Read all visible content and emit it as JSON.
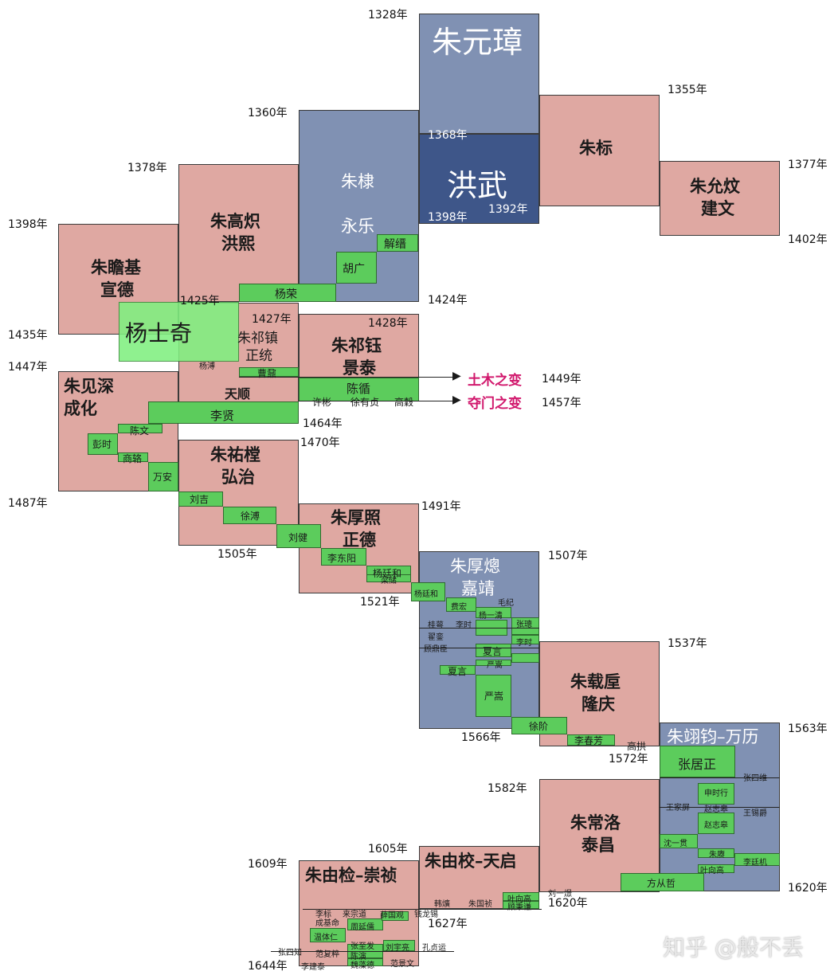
{
  "years": {
    "y1328": "1328年",
    "y1355": "1355年",
    "y1360": "1360年",
    "y1368": "1368年",
    "y1377": "1377年",
    "y1378": "1378年",
    "y1392": "1392年",
    "y1398a": "1398年",
    "y1398b": "1398年",
    "y1402": "1402年",
    "y1424": "1424年",
    "y1425": "1425年",
    "y1427": "1427年",
    "y1428": "1428年",
    "y1435": "1435年",
    "y1447": "1447年",
    "y1449": "1449年",
    "y1457": "1457年",
    "y1464": "1464年",
    "y1470": "1470年",
    "y1487": "1487年",
    "y1491": "1491年",
    "y1505": "1505年",
    "y1507": "1507年",
    "y1521": "1521年",
    "y1537": "1537年",
    "y1563": "1563年",
    "y1566": "1566年",
    "y1572": "1572年",
    "y1582": "1582年",
    "y1605": "1605年",
    "y1609": "1609年",
    "y1620a": "1620年",
    "y1620b": "1620年",
    "y1627": "1627年",
    "y1644": "1644年"
  },
  "emperors": {
    "zhuyuanzhang": "朱元璋",
    "hongwu": "洪武",
    "zhubiao": "朱标",
    "zhuyunwen": "朱允炆",
    "jianwen": "建文",
    "zhudi": "朱棣",
    "yongle": "永乐",
    "zhugaochi": "朱高炽",
    "hongxi": "洪熙",
    "zhuzhanji": "朱瞻基",
    "xuande": "宣德",
    "zhuqizhen": "朱祁镇",
    "zhengtong": "正统",
    "tianshun": "天顺",
    "zhuqiyu": "朱祁钰",
    "jingtai": "景泰",
    "zhujianshen": "朱见深",
    "chenghua": "成化",
    "zhuyoutang": "朱祐樘",
    "hongzhi": "弘治",
    "zhuhouzhao": "朱厚照",
    "zhengde": "正德",
    "zhuhoucong": "朱厚熜",
    "jiajing": "嘉靖",
    "zhuzaihou": "朱载垕",
    "longqing": "隆庆",
    "wanli": "朱翊钧–万历",
    "zhuchangluo": "朱常洛",
    "taichang": "泰昌",
    "tianqi": "朱由校–天启",
    "chongzhen": "朱由检–崇祯"
  },
  "ministers": {
    "xiejin": "解缙",
    "huguang": "胡广",
    "yangrong": "杨荣",
    "yangshiqi": "杨士奇",
    "yangpu": "杨溥",
    "caoji": "曹鼐",
    "chenxun": "陈循",
    "xubin": "许彬",
    "xuyouzhen": "徐有贞",
    "gaogu": "高穀",
    "lixian": "李贤",
    "chenwen": "陈文",
    "pengshi": "彭时",
    "shangluo": "商辂",
    "wanan": "万安",
    "liuji": "刘吉",
    "xupu": "徐溥",
    "liujian": "刘健",
    "lidongyang": "李东阳",
    "yangtinghe": "杨廷和",
    "lianghe": "梁储",
    "yangtinghe2": "杨廷和",
    "feihong": "费宏",
    "maoji": "毛纪",
    "yangyiqing": "杨一清",
    "zhangcong": "张璁",
    "guixiao": "桂萼",
    "lishi": "李时",
    "zhailuan": "翟銮",
    "guding": "顾鼎臣",
    "xiayan": "夏言",
    "xiayan2": "夏言",
    "yansong": "严嵩",
    "yansong2": "严嵩",
    "xujie": "徐阶",
    "lichunfang": "李春芳",
    "gaogong": "高拱",
    "zhangjuzheng": "张居正",
    "zhangsiwei": "张四维",
    "shenshixing": "申时行",
    "wangjiaping": "王家屏",
    "zhaozhigao": "赵志皋",
    "wangxijue": "王锡爵",
    "shenyiguan": "沈一贯",
    "zhugeng": "朱赓",
    "yexianggao": "叶向高",
    "lit Tingji": "李廷机",
    "fangcongzhe": "方从哲",
    "liuyijing": "刘一燝",
    "yexianggao2": "叶向高",
    "gubingqian": "顾秉谦",
    "hanyuan": "韩爌",
    "zhuguozhen": "朱国祯",
    "wentiren": "温体仁",
    "zhouyanru": "周延儒",
    "zhangzhifa": "张至发",
    "xuesk": "薛国观",
    "liuyuliang": "刘宇亮",
    "kongzhenyun": "孔贞运",
    "zhangsizhi": "张四知",
    "fanfuzui": "范复粹",
    "chenyan": "陈演",
    "weizaode": "魏藻德",
    "lijiantai": "李建泰",
    "fanjingwen": "范景文",
    "lizhuo": "李标",
    "laizongdao": "来宗道",
    "chengjiming": "成基命",
    "qianlongxi": "钱龙锡",
    "chenshangyi": "陈演"
  },
  "events": {
    "tumu": "土木之变",
    "duomen": "夺门之变"
  },
  "watermark": "知乎 @般不丢"
}
